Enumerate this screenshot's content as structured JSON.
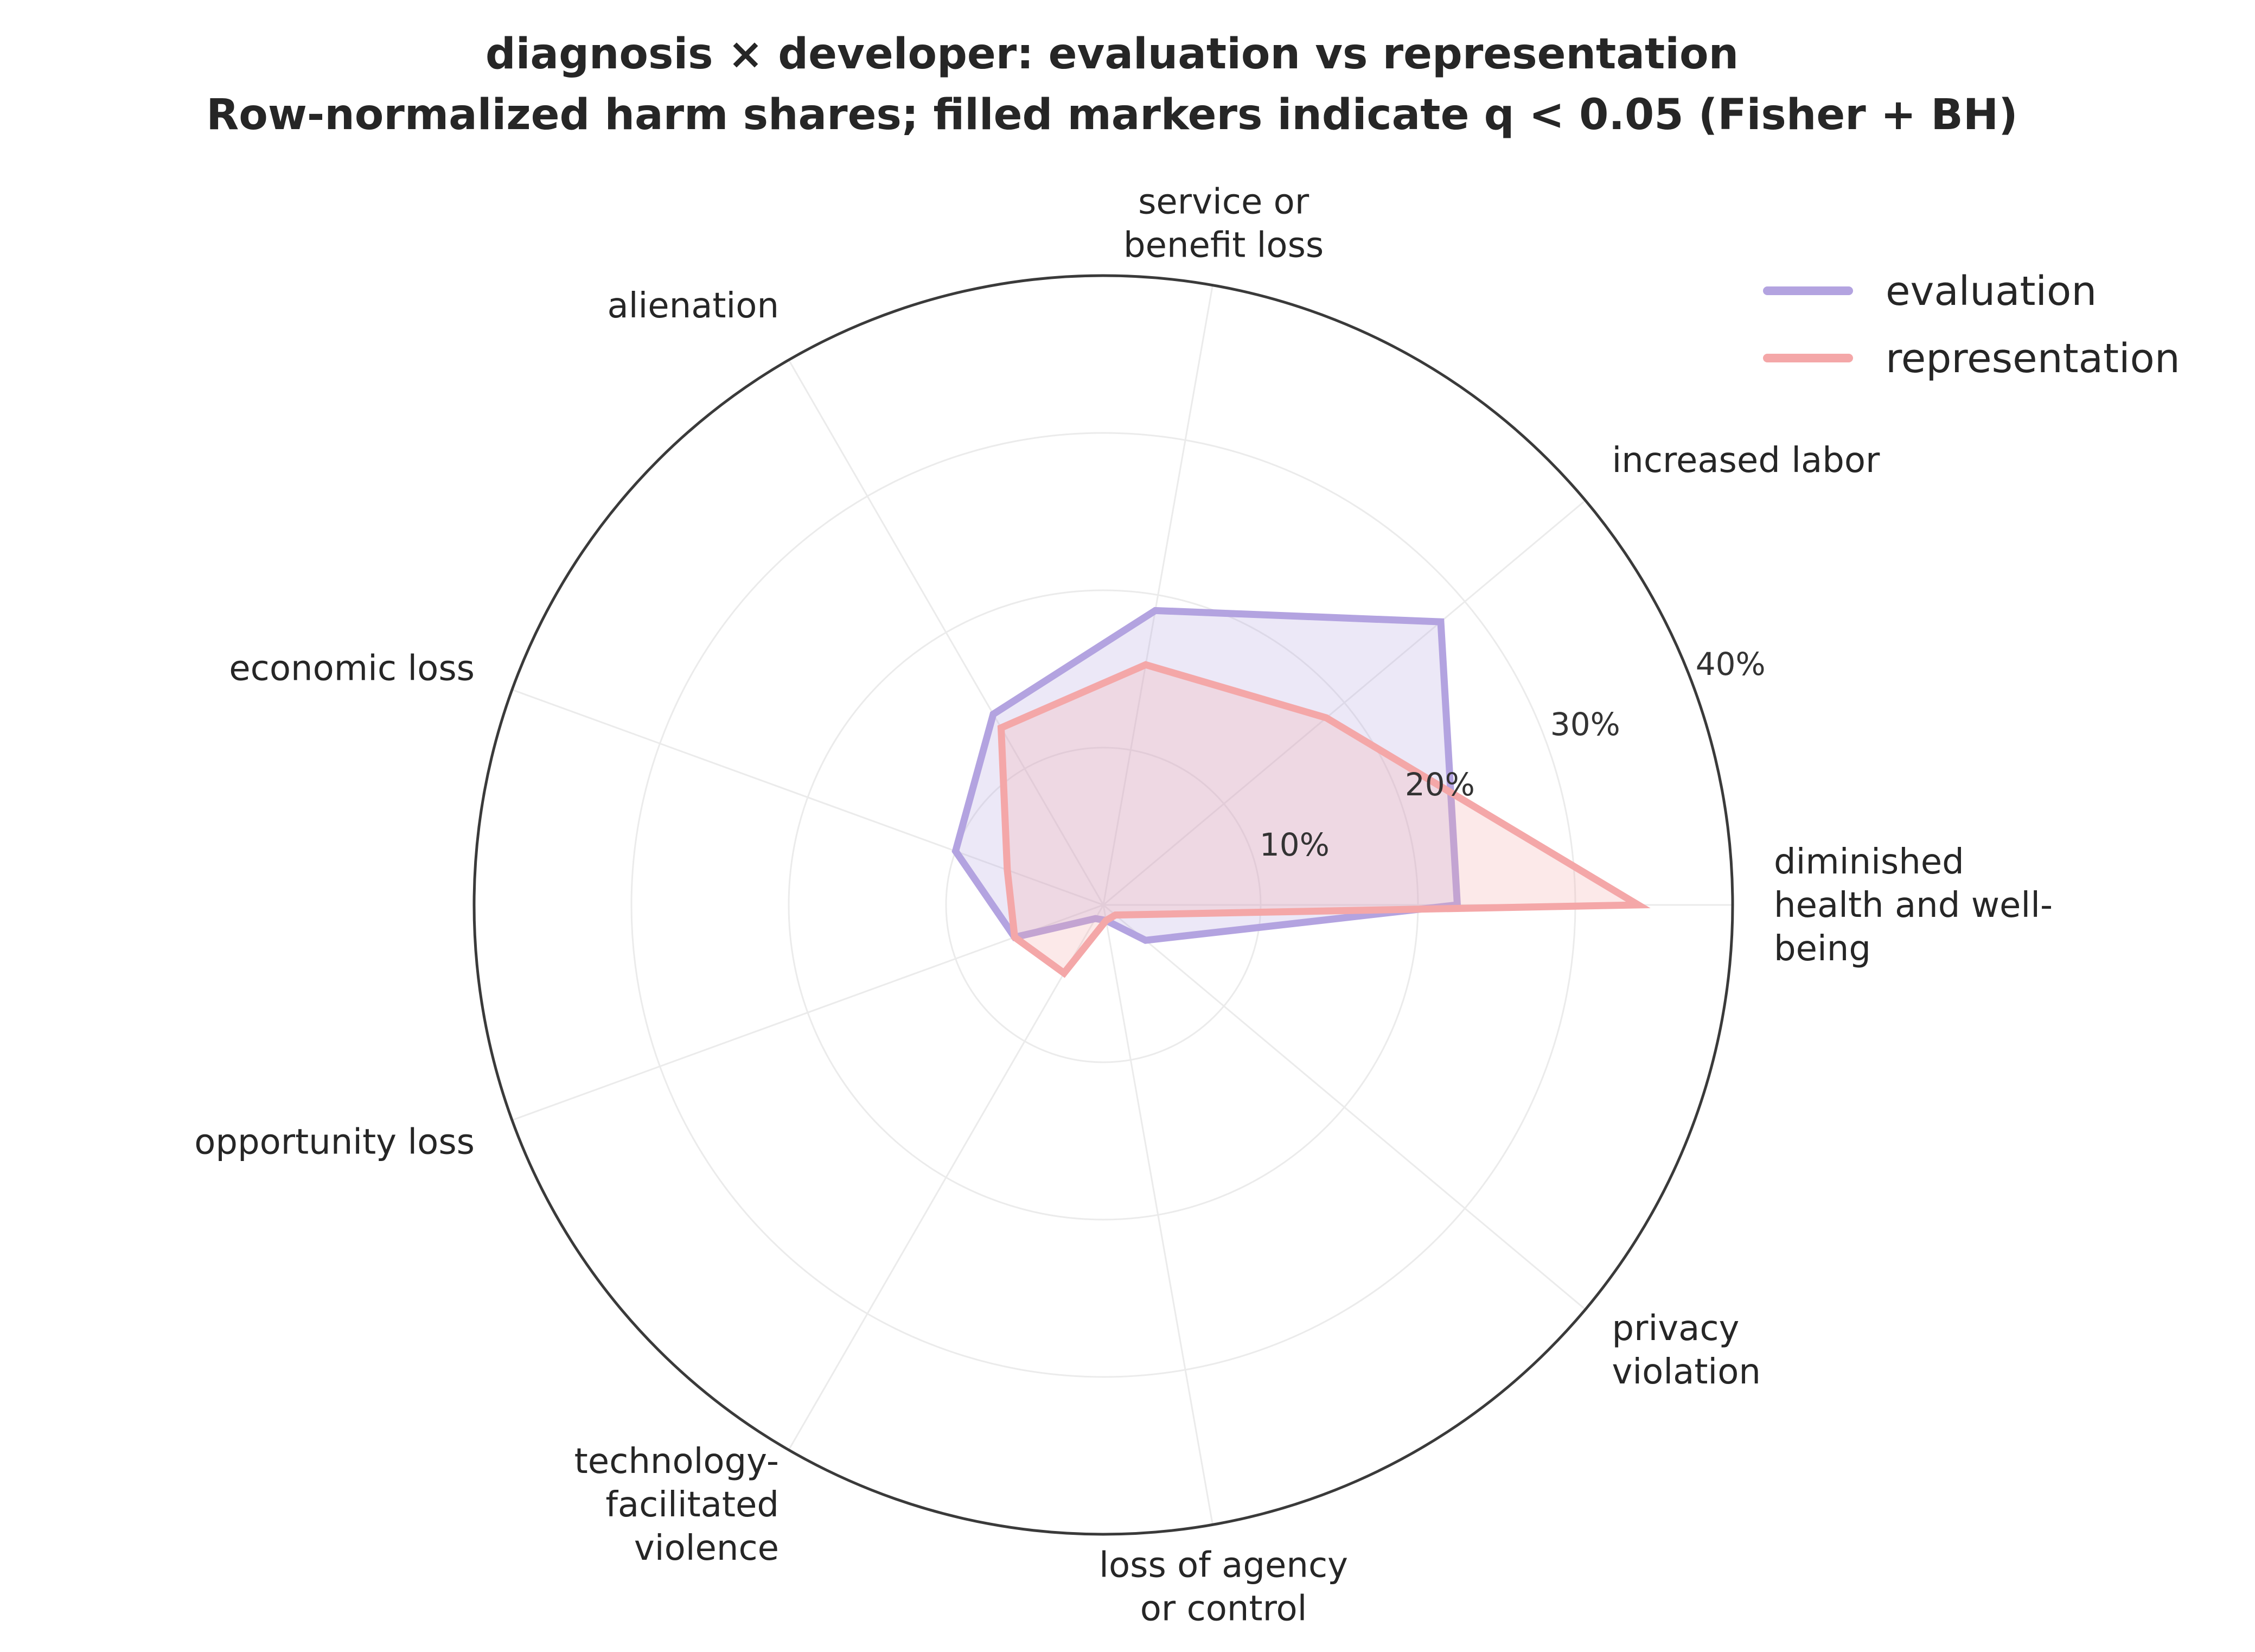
{
  "chart_data": {
    "type": "radar",
    "title": "diagnosis × developer: evaluation vs representation",
    "subtitle": "Row-normalized harm shares; filled markers indicate q < 0.05 (Fisher + BH)",
    "categories": [
      [
        "diminished",
        "health and well-",
        "being"
      ],
      [
        "increased labor"
      ],
      [
        "service or",
        "benefit loss"
      ],
      [
        "alienation"
      ],
      [
        "economic loss"
      ],
      [
        "opportunity loss"
      ],
      [
        "technology-",
        "facilitated",
        "violence"
      ],
      [
        "loss of agency",
        "or control"
      ],
      [
        "privacy",
        "violation"
      ]
    ],
    "radial_ticks": [
      "10%",
      "20%",
      "30%",
      "40%"
    ],
    "radial_tick_values": [
      10,
      20,
      30,
      40
    ],
    "rlim": [
      0,
      40
    ],
    "series": [
      {
        "name": "evaluation",
        "color": "#b3a3e0",
        "values": [
          22.5,
          28.0,
          19.0,
          14.0,
          10.0,
          6.0,
          1.0,
          1.0,
          3.5
        ]
      },
      {
        "name": "representation",
        "color": "#f4a7a8",
        "values": [
          34.0,
          18.5,
          15.5,
          13.0,
          6.5,
          6.0,
          5.0,
          1.0,
          1.0
        ]
      }
    ],
    "legend_position": "top-right",
    "grid": true
  }
}
